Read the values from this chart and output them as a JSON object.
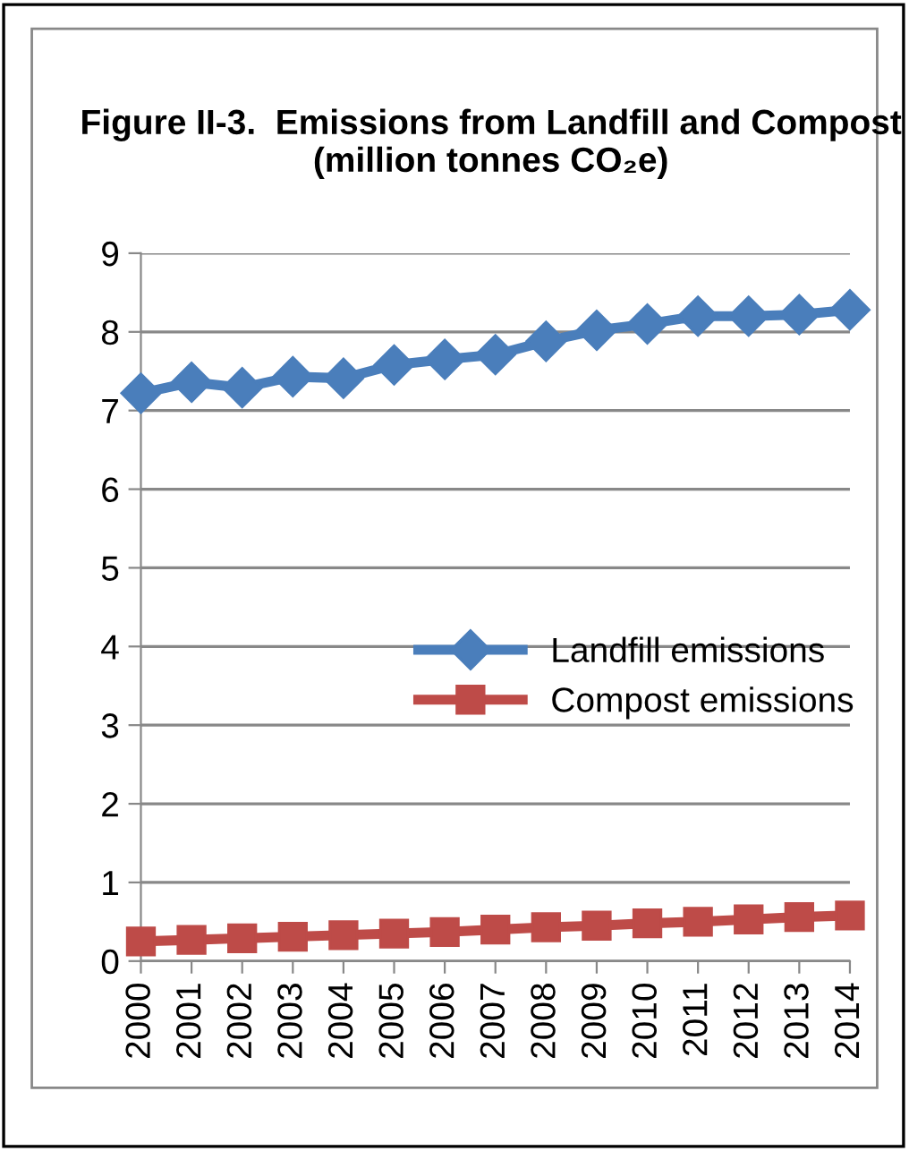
{
  "chart_data": {
    "type": "line",
    "title": "Figure II-3.  Emissions from Landfill and Compost\n(million tonnes CO₂e)",
    "categories": [
      "2000",
      "2001",
      "2002",
      "2003",
      "2004",
      "2005",
      "2006",
      "2007",
      "2008",
      "2009",
      "2010",
      "2011",
      "2012",
      "2013",
      "2014"
    ],
    "series": [
      {
        "name": "Landfill emissions",
        "color": "#4a7ebb",
        "marker": "diamond",
        "values": [
          7.22,
          7.36,
          7.29,
          7.43,
          7.41,
          7.58,
          7.65,
          7.71,
          7.88,
          8.02,
          8.1,
          8.2,
          8.2,
          8.22,
          8.28
        ]
      },
      {
        "name": "Compost emissions",
        "color": "#be4b48",
        "marker": "square",
        "values": [
          0.25,
          0.27,
          0.29,
          0.31,
          0.33,
          0.35,
          0.37,
          0.4,
          0.43,
          0.45,
          0.48,
          0.5,
          0.53,
          0.56,
          0.58
        ]
      }
    ],
    "ylim": [
      0,
      9
    ],
    "yticks": [
      0,
      1,
      2,
      3,
      4,
      5,
      6,
      7,
      8,
      9
    ],
    "grid": "y",
    "legend": "center right",
    "line_style": "solid"
  }
}
